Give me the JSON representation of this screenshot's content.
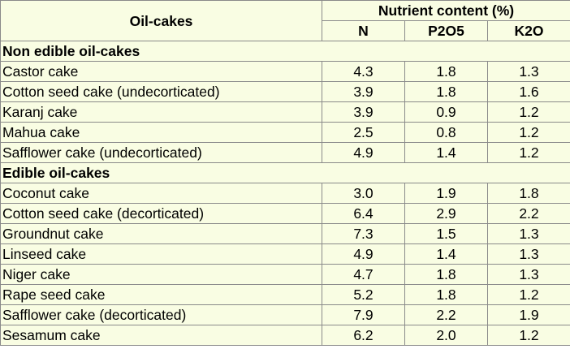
{
  "header": {
    "col_name": "Oil-cakes",
    "group": "Nutrient content (%)",
    "col_n": "N",
    "col_p": "P2O5",
    "col_k": "K2O"
  },
  "sections": [
    {
      "title": "Non edible oil-cakes",
      "rows": [
        {
          "name": "Castor cake",
          "n": "4.3",
          "p": "1.8",
          "k": "1.3"
        },
        {
          "name": "Cotton seed cake (undecorticated)",
          "n": "3.9",
          "p": "1.8",
          "k": "1.6"
        },
        {
          "name": "Karanj cake",
          "n": "3.9",
          "p": "0.9",
          "k": "1.2"
        },
        {
          "name": "Mahua cake",
          "n": "2.5",
          "p": "0.8",
          "k": "1.2"
        },
        {
          "name": "Safflower cake (undecorticated)",
          "n": "4.9",
          "p": "1.4",
          "k": "1.2"
        }
      ]
    },
    {
      "title": "Edible oil-cakes",
      "rows": [
        {
          "name": "Coconut cake",
          "n": "3.0",
          "p": "1.9",
          "k": "1.8"
        },
        {
          "name": "Cotton seed cake (decorticated)",
          "n": "6.4",
          "p": "2.9",
          "k": "2.2"
        },
        {
          "name": "Groundnut cake",
          "n": "7.3",
          "p": "1.5",
          "k": "1.3"
        },
        {
          "name": "Linseed cake",
          "n": "4.9",
          "p": "1.4",
          "k": "1.3"
        },
        {
          "name": "Niger cake",
          "n": "4.7",
          "p": "1.8",
          "k": "1.3"
        },
        {
          "name": "Rape seed cake",
          "n": "5.2",
          "p": "1.8",
          "k": "1.2"
        },
        {
          "name": "Safflower cake (decorticated)",
          "n": "7.9",
          "p": "2.2",
          "k": "1.9"
        },
        {
          "name": "Sesamum cake",
          "n": "6.2",
          "p": "2.0",
          "k": "1.2"
        }
      ]
    }
  ]
}
